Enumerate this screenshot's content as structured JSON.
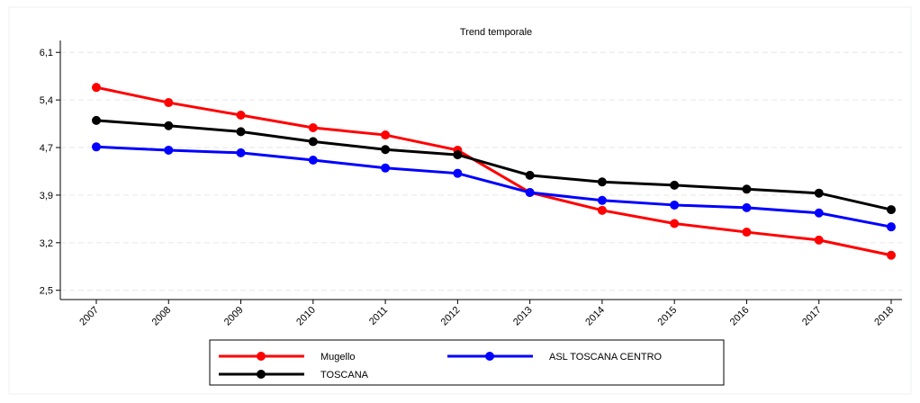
{
  "chart_data": {
    "type": "line",
    "title": "Trend temporale",
    "categories": [
      "2007",
      "2008",
      "2009",
      "2010",
      "2011",
      "2012",
      "2013",
      "2014",
      "2015",
      "2016",
      "2017",
      "2018"
    ],
    "series": [
      {
        "name": "Mugello",
        "color": "#ff0000",
        "values": [
          5.57,
          5.34,
          5.15,
          4.96,
          4.85,
          4.62,
          3.98,
          3.71,
          3.51,
          3.38,
          3.26,
          3.03
        ]
      },
      {
        "name": "ASL TOSCANA CENTRO",
        "color": "#0000ff",
        "values": [
          4.67,
          4.62,
          4.58,
          4.47,
          4.35,
          4.27,
          3.98,
          3.86,
          3.79,
          3.75,
          3.67,
          3.46
        ]
      },
      {
        "name": "TOSCANA",
        "color": "#000000",
        "values": [
          5.07,
          4.99,
          4.9,
          4.75,
          4.63,
          4.55,
          4.24,
          4.14,
          4.09,
          4.03,
          3.97,
          3.72
        ]
      }
    ],
    "ylim": [
      2.36,
      6.28
    ],
    "yticks": [
      {
        "value": 2.5,
        "label": "2,5"
      },
      {
        "value": 3.22,
        "label": "3,2"
      },
      {
        "value": 3.94,
        "label": "3,9"
      },
      {
        "value": 4.66,
        "label": "4,7"
      },
      {
        "value": 5.38,
        "label": "5,4"
      },
      {
        "value": 6.1,
        "label": "6,1"
      }
    ],
    "grid": true
  }
}
